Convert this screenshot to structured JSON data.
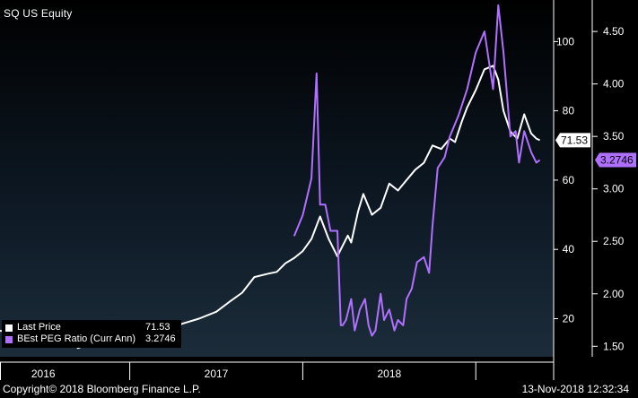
{
  "title": "SQ US Equity",
  "footer": {
    "copyright": "Copyright© 2018 Bloomberg Finance L.P.",
    "timestamp": "13-Nov-2018 12:32:34"
  },
  "legend": [
    {
      "name": "Last Price",
      "value": "71.53",
      "color": "#ffffff"
    },
    {
      "name": "BEst PEG Ratio (Curr Ann)",
      "value": "3.2746",
      "color": "#b070ff"
    }
  ],
  "chart_data": {
    "type": "line",
    "xlim": [
      2015.75,
      2018.95
    ],
    "x_ticks": [
      2016.0,
      2017.0,
      2018.0
    ],
    "x_labels": [
      "2016",
      "2017",
      "2018"
    ],
    "left_axis": {
      "ylim": [
        9,
        112
      ],
      "ticks": [
        20,
        40,
        60,
        80,
        100
      ]
    },
    "right_axis": {
      "ylim": [
        1.4,
        4.8
      ],
      "ticks": [
        1.5,
        2.0,
        2.5,
        3.0,
        3.5,
        4.0,
        4.5
      ],
      "tick_labels": [
        "1.50",
        "2.00",
        "2.50",
        "3.00",
        "3.50",
        "4.00",
        "4.50"
      ]
    },
    "series": [
      {
        "name": "Last Price",
        "axis": "left",
        "color": "#ffffff",
        "last_label": "71.53",
        "x": [
          2015.75,
          2015.83,
          2015.88,
          2015.95,
          2016.05,
          2016.12,
          2016.2,
          2016.25,
          2016.3,
          2016.35,
          2016.4,
          2016.45,
          2016.5,
          2016.6,
          2016.7,
          2016.8,
          2016.9,
          2017.0,
          2017.08,
          2017.15,
          2017.22,
          2017.3,
          2017.35,
          2017.4,
          2017.45,
          2017.5,
          2017.55,
          2017.6,
          2017.65,
          2017.68,
          2017.7,
          2017.72,
          2017.76,
          2017.78,
          2017.82,
          2017.85,
          2017.9,
          2017.95,
          2018.0,
          2018.05,
          2018.1,
          2018.15,
          2018.2,
          2018.25,
          2018.3,
          2018.35,
          2018.38,
          2018.42,
          2018.45,
          2018.5,
          2018.55,
          2018.6,
          2018.63,
          2018.66,
          2018.7,
          2018.74,
          2018.78,
          2018.82,
          2018.85,
          2018.87
        ],
        "values": [
          16.5,
          16.0,
          13.0,
          15.5,
          18.0,
          16.5,
          11.5,
          12.5,
          12.0,
          12.5,
          13.5,
          14.0,
          13.5,
          14.5,
          16.0,
          18.5,
          20.0,
          22.0,
          25.0,
          27.5,
          32.0,
          33.0,
          33.5,
          36.0,
          37.5,
          39.5,
          43.0,
          49.5,
          43.0,
          40.0,
          38.0,
          40.0,
          44.0,
          42.0,
          51.0,
          56.0,
          50.0,
          52.0,
          59.0,
          57.0,
          60.0,
          63.0,
          65.0,
          70.0,
          69.0,
          72.0,
          71.0,
          77.0,
          81.0,
          86.0,
          92.0,
          93.0,
          89.0,
          80.0,
          74.0,
          72.0,
          79.0,
          73.5,
          72.0,
          71.53
        ]
      },
      {
        "name": "BEst PEG Ratio (Curr Ann)",
        "axis": "right",
        "color": "#b070ff",
        "last_label": "3.2746",
        "x": [
          2017.45,
          2017.5,
          2017.55,
          2017.58,
          2017.6,
          2017.63,
          2017.66,
          2017.7,
          2017.72,
          2017.73,
          2017.75,
          2017.78,
          2017.8,
          2017.83,
          2017.86,
          2017.88,
          2017.9,
          2017.92,
          2017.95,
          2017.97,
          2018.0,
          2018.03,
          2018.05,
          2018.08,
          2018.1,
          2018.13,
          2018.16,
          2018.2,
          2018.23,
          2018.25,
          2018.28,
          2018.32,
          2018.35,
          2018.4,
          2018.45,
          2018.5,
          2018.55,
          2018.6,
          2018.63,
          2018.66,
          2018.7,
          2018.73,
          2018.75,
          2018.78,
          2018.8,
          2018.82,
          2018.85,
          2018.87
        ],
        "values": [
          2.55,
          2.75,
          3.1,
          4.1,
          2.85,
          2.85,
          2.6,
          2.6,
          1.7,
          1.7,
          1.75,
          1.95,
          1.65,
          1.85,
          1.95,
          1.7,
          1.6,
          1.65,
          2.0,
          1.75,
          1.85,
          1.65,
          1.75,
          1.7,
          1.95,
          2.05,
          2.3,
          2.35,
          2.2,
          2.65,
          3.2,
          3.3,
          3.5,
          3.7,
          3.95,
          4.3,
          4.5,
          3.95,
          4.75,
          4.3,
          3.5,
          3.55,
          3.25,
          3.55,
          3.45,
          3.35,
          3.25,
          3.2746
        ]
      }
    ]
  }
}
